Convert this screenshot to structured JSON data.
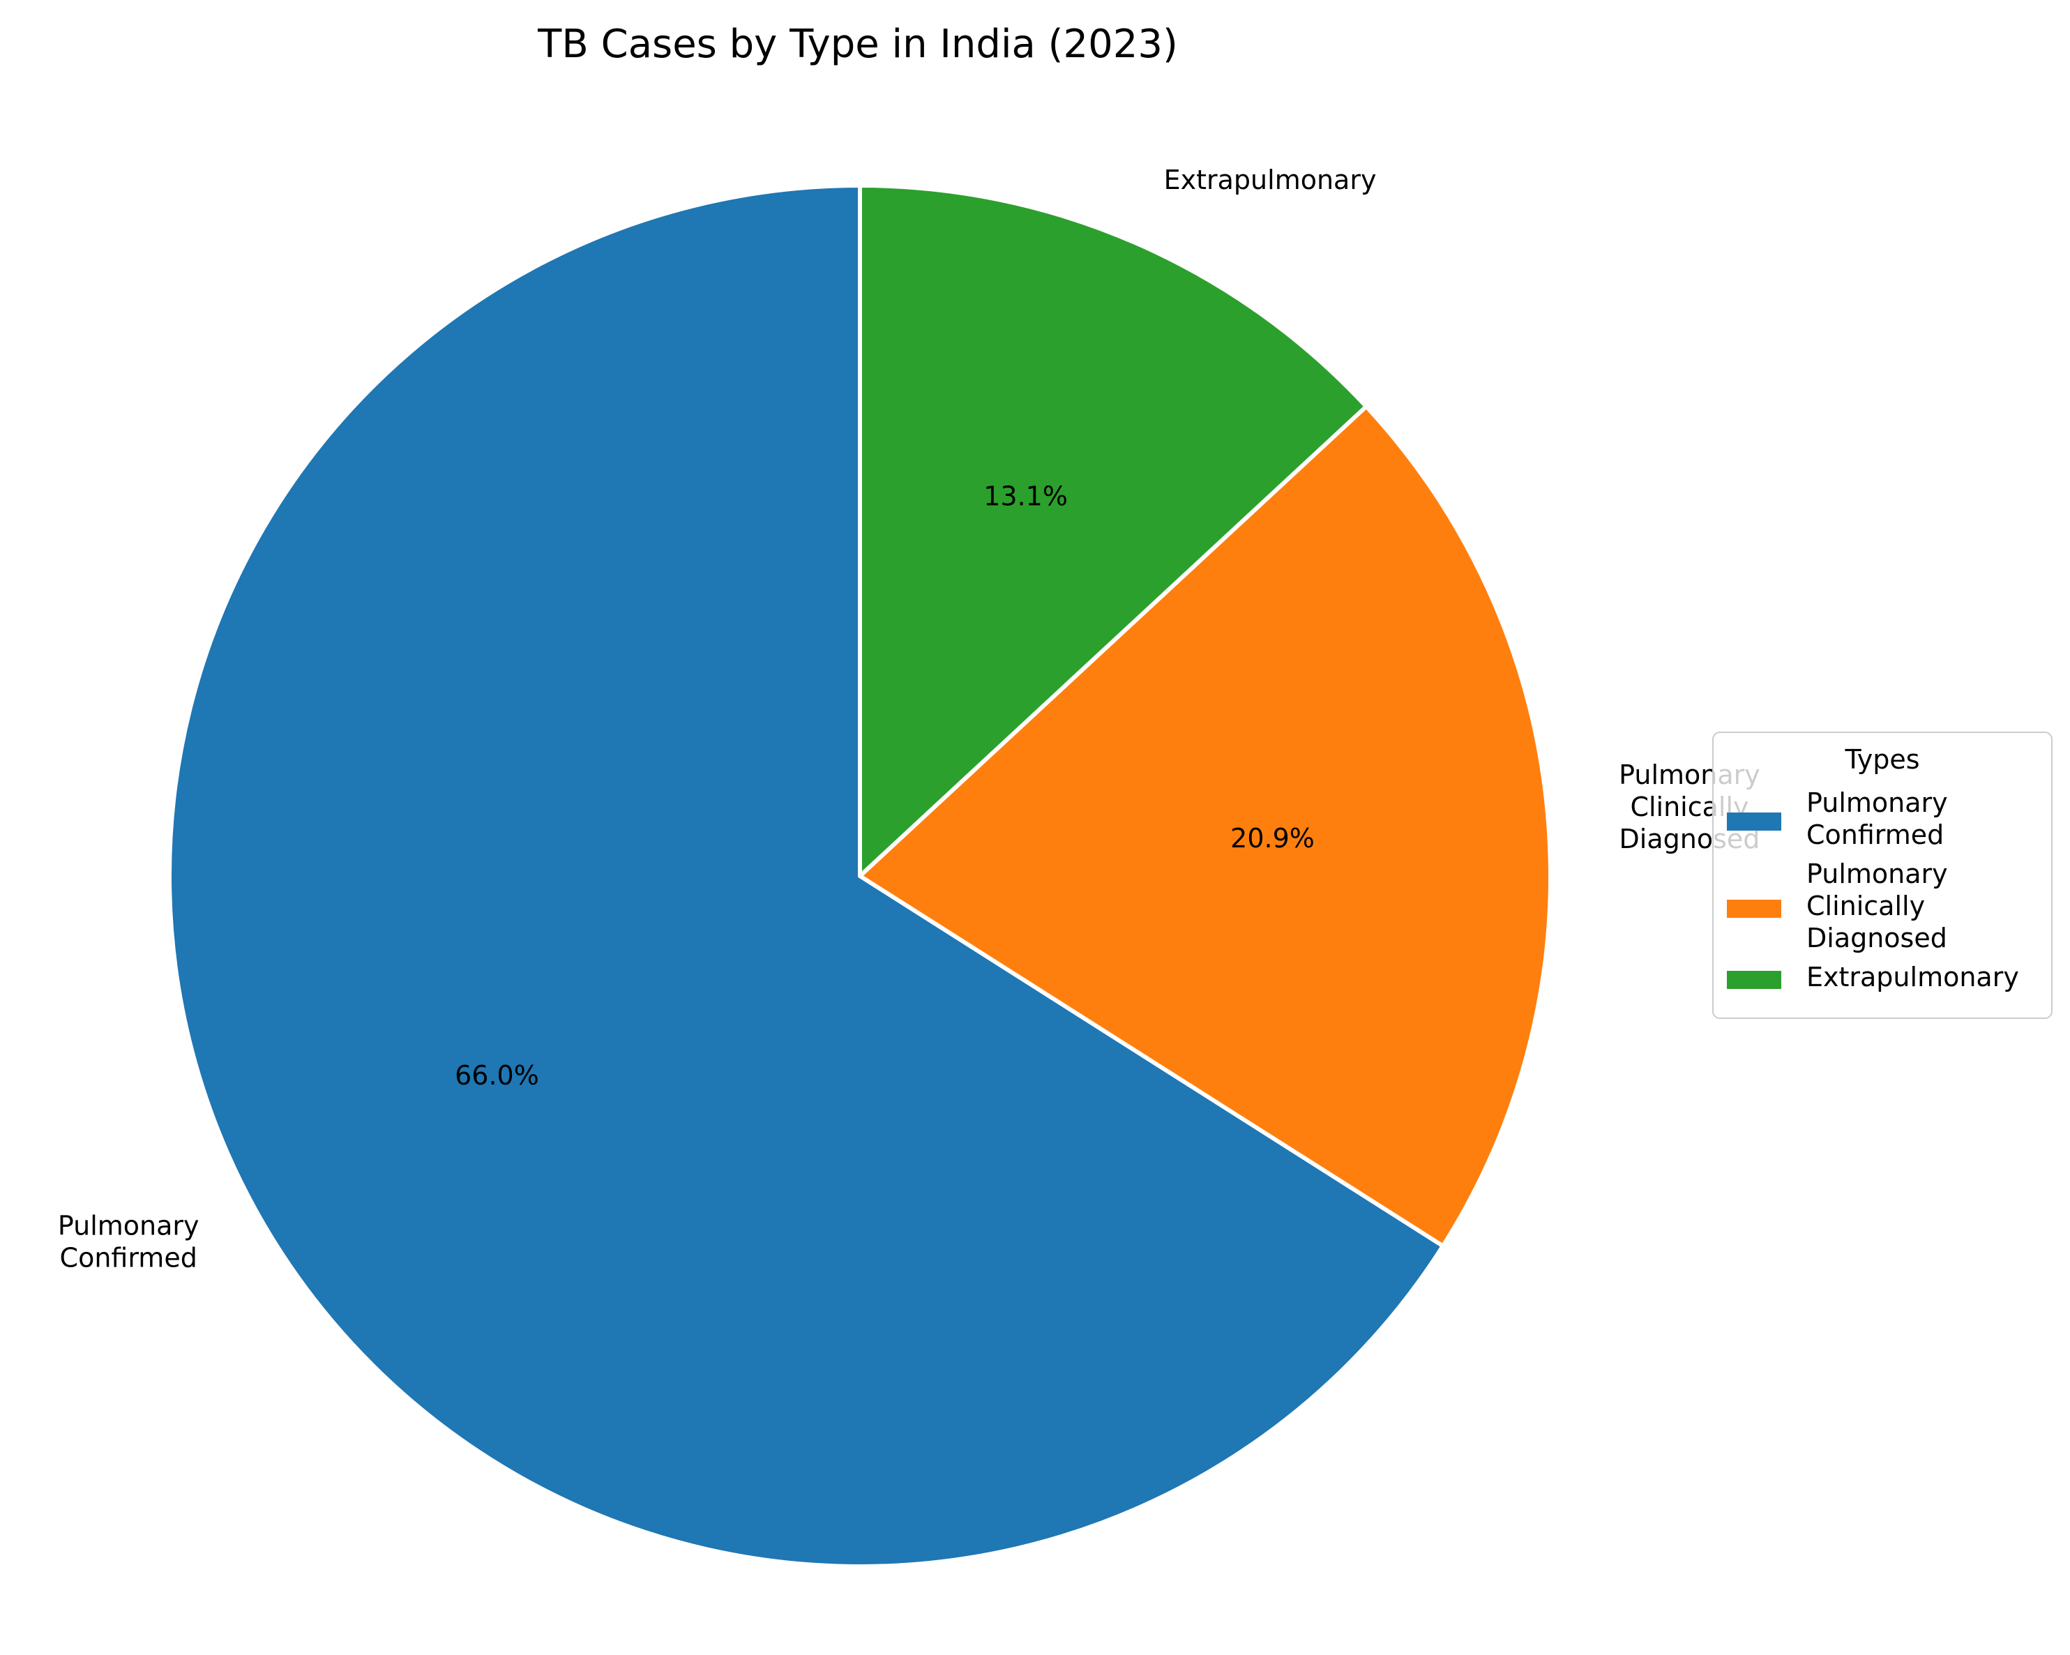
{
  "chart_data": {
    "type": "pie",
    "title": "TB Cases by Type in India (2023)",
    "categories": [
      "Pulmonary Confirmed",
      "Pulmonary Clinically Diagnosed",
      "Extrapulmonary"
    ],
    "label_lines": [
      [
        "Pulmonary",
        "Confirmed"
      ],
      [
        "Pulmonary",
        "Clinically",
        "Diagnosed"
      ],
      [
        "Extrapulmonary"
      ]
    ],
    "values": [
      66.0,
      20.9,
      13.1
    ],
    "pct_labels": [
      "66.0%",
      "20.9%",
      "13.1%"
    ],
    "colors": [
      "#1f77b4",
      "#ff7f0e",
      "#2ca02c"
    ],
    "start_angle_deg": 90,
    "direction": "counterclockwise",
    "legend": {
      "title": "Types",
      "placement": "right",
      "entries": [
        [
          "Pulmonary",
          "Confirmed"
        ],
        [
          "Pulmonary",
          "Clinically",
          "Diagnosed"
        ],
        [
          "Extrapulmonary"
        ]
      ]
    }
  }
}
